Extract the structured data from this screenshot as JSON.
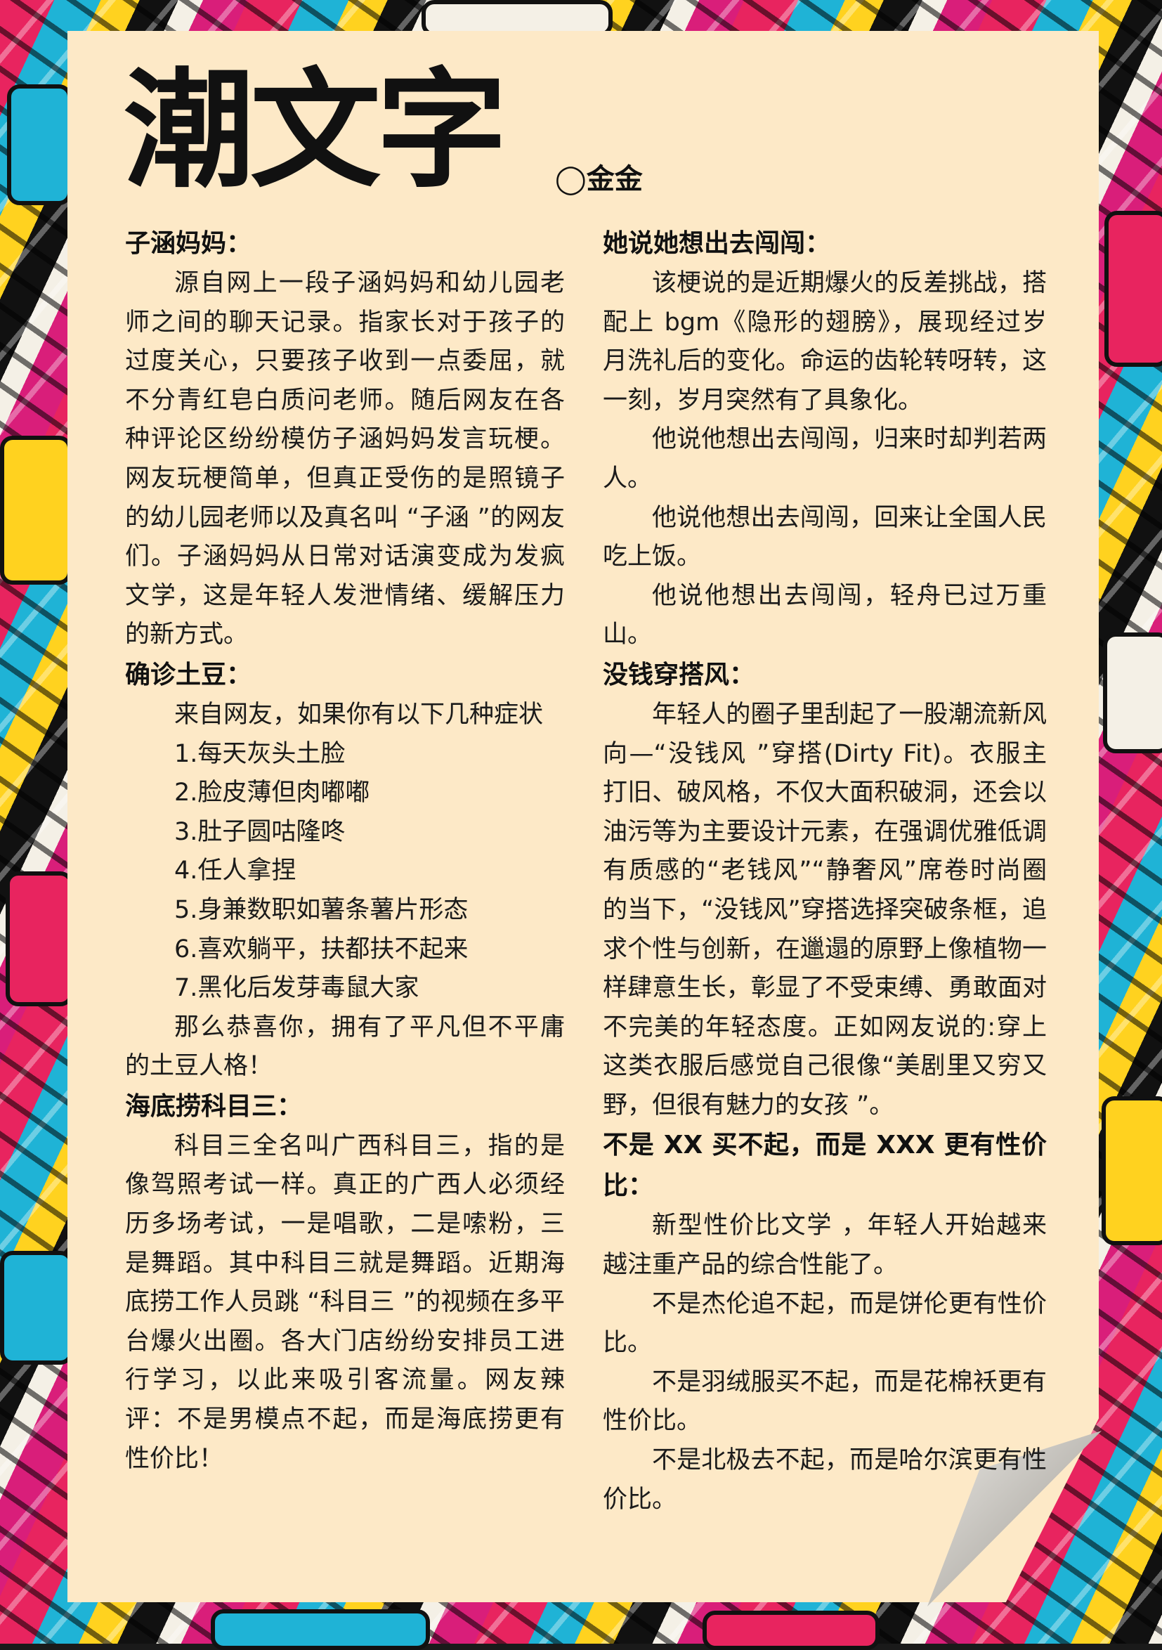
{
  "title": "潮文字",
  "author": "◯金金",
  "left": {
    "s1": {
      "heading": "子涵妈妈：",
      "p1": "源自网上一段子涵妈妈和幼儿园老师之间的聊天记录。指家长对于孩子的过度关心，只要孩子收到一点委屈，就不分青红皂白质问老师。随后网友在各种评论区纷纷模仿子涵妈妈发言玩梗。网友玩梗简单，但真正受伤的是照镜子的幼儿园老师以及真名叫 “子涵 ”的网友们。子涵妈妈从日常对话演变成为发疯文学，这是年轻人发泄情绪、缓解压力的新方式。"
    },
    "s2": {
      "heading": "确诊土豆：",
      "intro": "来自网友，如果你有以下几种症状",
      "items": [
        "1.每天灰头土脸",
        "2.脸皮薄但肉嘟嘟",
        "3.肚子圆咕隆咚",
        "4.任人拿捏",
        "5.身兼数职如薯条薯片形态",
        "6.喜欢躺平，扶都扶不起来",
        "7.黑化后发芽毒鼠大家"
      ],
      "outro": "那么恭喜你，拥有了平凡但不平庸的土豆人格！"
    },
    "s3": {
      "heading": "海底捞科目三：",
      "p1": "科目三全名叫广西科目三，指的是像驾照考试一样。真正的广西人必须经历多场考试，一是唱歌，二是嗦粉，三是舞蹈。其中科目三就是舞蹈。近期海底捞工作人员跳 “科目三 ”的视频在多平台爆火出圈。各大门店纷纷安排员工进行学习，以此来吸引客流量。网友辣评：不是男模点不起，而是海底捞更有性价比！"
    }
  },
  "right": {
    "s1": {
      "heading": "她说她想出去闯闯：",
      "p1": "该梗说的是近期爆火的反差挑战，搭配上 bgm《隐形的翅膀》，展现经过岁月洗礼后的变化。命运的齿轮转呀转，这一刻，岁月突然有了具象化。",
      "p2": "他说他想出去闯闯，归来时却判若两人。",
      "p3": "他说他想出去闯闯，回来让全国人民吃上饭。",
      "p4": "他说他想出去闯闯，轻舟已过万重山。"
    },
    "s2": {
      "heading": "没钱穿搭风：",
      "p1": "年轻人的圈子里刮起了一股潮流新风向—“没钱风 ”穿搭(Dirty Fit)。衣服主打旧、破风格，不仅大面积破洞，还会以油污等为主要设计元素，在强调优雅低调有质感的“老钱风”“静奢风”席卷时尚圈的当下，“没钱风”穿搭选择突破条框，追求个性与创新，在邋遢的原野上像植物一样肆意生长，彰显了不受束缚、勇敢面对不完美的年轻态度。正如网友说的:穿上这类衣服后感觉自己很像“美剧里又穷又野，但很有魅力的女孩 ”。"
    },
    "s3": {
      "heading": "不是 XX 买不起，而是 XXX 更有性价比：",
      "p1": "新型性价比文学 ，年轻人开始越来越注重产品的综合性能了。",
      "p2": "不是杰伦追不起，而是饼伦更有性价比。",
      "p3": "不是羽绒服买不起，而是花棉袄更有性价比。",
      "p4": "不是北极去不起，而是哈尔滨更有性价比。"
    }
  }
}
